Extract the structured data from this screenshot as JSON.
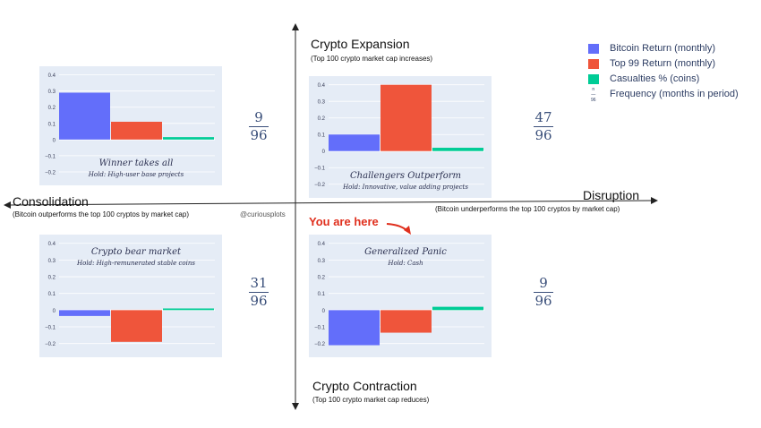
{
  "legend": {
    "items": [
      {
        "label": "Bitcoin Return",
        "unit": "(monthly)",
        "color": "#636efa"
      },
      {
        "label": "Top 99 Return",
        "unit": "(monthly)",
        "color": "#ef553b"
      },
      {
        "label": "Casualties %",
        "unit": "(coins)",
        "color": "#00cc96"
      }
    ],
    "frequency_label": "Frequency (months in period)",
    "frequency_symbol_num": "n",
    "frequency_symbol_den": "96"
  },
  "axes": {
    "top_title": "Crypto Expansion",
    "top_sub": "(Top 100 crypto market cap increases)",
    "bottom_title": "Crypto Contraction",
    "bottom_sub": "(Top 100 crypto market cap reduces)",
    "left_title": "Consolidation",
    "left_sub": "(Bitcoin outperforms the top 100 cryptos by market cap)",
    "right_title": "Disruption",
    "right_sub": "(Bitcoin underperforms the top 100 cryptos by market cap)",
    "handle": "@curiousplots",
    "here_label": "You are here"
  },
  "chart_data": [
    {
      "type": "bar",
      "quadrant": "top-left",
      "title": "Winner takes all",
      "subtitle": "Hold: High-user base projects",
      "series": [
        {
          "name": "Bitcoin Return",
          "values": [
            0.29
          ]
        },
        {
          "name": "Top 99 Return",
          "values": [
            0.11
          ]
        },
        {
          "name": "Casualties %",
          "values": [
            0.015
          ]
        }
      ],
      "ylim": [
        -0.25,
        0.42
      ],
      "yticks": [
        -0.2,
        -0.1,
        0,
        0.1,
        0.2,
        0.3,
        0.4
      ],
      "frequency": {
        "num": "9",
        "den": "96"
      }
    },
    {
      "type": "bar",
      "quadrant": "top-right",
      "title": "Challengers Outperform",
      "subtitle": "Hold: Innovative, value adding projects",
      "series": [
        {
          "name": "Bitcoin Return",
          "values": [
            0.1
          ]
        },
        {
          "name": "Top 99 Return",
          "values": [
            0.4
          ]
        },
        {
          "name": "Casualties %",
          "values": [
            0.02
          ]
        }
      ],
      "ylim": [
        -0.25,
        0.42
      ],
      "yticks": [
        -0.2,
        -0.1,
        0,
        0.1,
        0.2,
        0.3,
        0.4
      ],
      "frequency": {
        "num": "47",
        "den": "96"
      }
    },
    {
      "type": "bar",
      "quadrant": "bottom-left",
      "title": "Crypto bear market",
      "subtitle": "Hold: High-remunerated stable coins",
      "series": [
        {
          "name": "Bitcoin Return",
          "values": [
            -0.035
          ]
        },
        {
          "name": "Top 99 Return",
          "values": [
            -0.19
          ]
        },
        {
          "name": "Casualties %",
          "values": [
            0.01
          ]
        }
      ],
      "ylim": [
        -0.25,
        0.42
      ],
      "yticks": [
        -0.2,
        -0.1,
        0,
        0.1,
        0.2,
        0.3,
        0.4
      ],
      "frequency": {
        "num": "31",
        "den": "96"
      }
    },
    {
      "type": "bar",
      "quadrant": "bottom-right",
      "title": "Generalized Panic",
      "subtitle": "Hold: Cash",
      "series": [
        {
          "name": "Bitcoin Return",
          "values": [
            -0.21
          ]
        },
        {
          "name": "Top 99 Return",
          "values": [
            -0.135
          ]
        },
        {
          "name": "Casualties %",
          "values": [
            0.02
          ]
        }
      ],
      "ylim": [
        -0.25,
        0.42
      ],
      "yticks": [
        -0.2,
        -0.1,
        0,
        0.1,
        0.2,
        0.3,
        0.4
      ],
      "frequency": {
        "num": "9",
        "den": "96"
      }
    }
  ]
}
